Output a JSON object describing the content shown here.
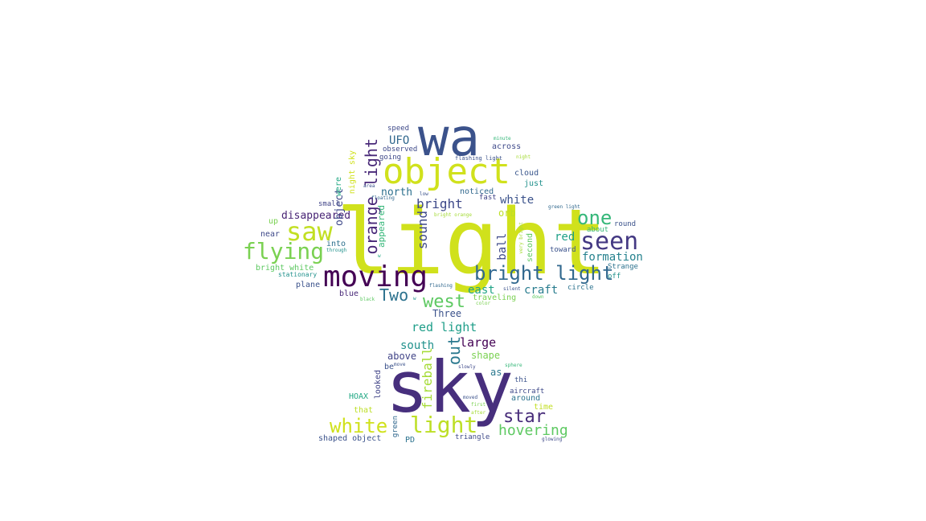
{
  "word_cloud": {
    "words": [
      {
        "text": "light",
        "color": "#d0e11c"
      },
      {
        "text": "sky",
        "color": "#472f7d"
      },
      {
        "text": "wa",
        "color": "#3b528b"
      },
      {
        "text": "object",
        "color": "#d0e11c"
      },
      {
        "text": "moving",
        "color": "#440154"
      },
      {
        "text": "saw",
        "color": "#c2df23"
      },
      {
        "text": "seen",
        "color": "#443983"
      },
      {
        "text": "flying",
        "color": "#7ad151"
      },
      {
        "text": "bright light",
        "color": "#31688e"
      },
      {
        "text": "one",
        "color": "#35b779"
      },
      {
        "text": "white",
        "color": "#d0e11c"
      },
      {
        "text": "light",
        "color": "#bddf26"
      },
      {
        "text": "star",
        "color": "#472c7a"
      },
      {
        "text": "west",
        "color": "#5ec962"
      },
      {
        "text": "Two",
        "color": "#2c728e"
      },
      {
        "text": "hovering",
        "color": "#5ec962"
      },
      {
        "text": "orange light",
        "color": "#482878"
      },
      {
        "text": "formation",
        "color": "#26828e"
      },
      {
        "text": "bright",
        "color": "#3e4989"
      },
      {
        "text": "red light",
        "color": "#1f9e89"
      },
      {
        "text": "out",
        "color": "#2a788e"
      },
      {
        "text": "sound",
        "color": "#3e4989"
      },
      {
        "text": "large",
        "color": "#440154"
      },
      {
        "text": "disappeared",
        "color": "#482475"
      },
      {
        "text": "UFO",
        "color": "#31688e"
      },
      {
        "text": "north",
        "color": "#2d708e"
      },
      {
        "text": "white",
        "color": "#3b528b"
      },
      {
        "text": "red",
        "color": "#1fa088"
      },
      {
        "text": "craft",
        "color": "#287c8e"
      },
      {
        "text": "east",
        "color": "#20a486"
      },
      {
        "text": "south",
        "color": "#21918c"
      },
      {
        "text": "fireball",
        "color": "#a5db36"
      },
      {
        "text": "orb",
        "color": "#bddf26"
      },
      {
        "text": "shape",
        "color": "#7ad151"
      },
      {
        "text": "Three",
        "color": "#3b528b"
      },
      {
        "text": "ball",
        "color": "#3e4989"
      },
      {
        "text": "appeared",
        "color": "#35b779"
      },
      {
        "text": "above",
        "color": "#414487"
      },
      {
        "text": "as",
        "color": "#2a788e"
      },
      {
        "text": "object",
        "color": "#3e4989"
      },
      {
        "text": "noticed",
        "color": "#31688e"
      },
      {
        "text": "cloud",
        "color": "#39568c"
      },
      {
        "text": "across",
        "color": "#3e4989"
      },
      {
        "text": "just",
        "color": "#21918c"
      },
      {
        "text": "night sky",
        "color": "#d0e11c"
      },
      {
        "text": "were",
        "color": "#22a884"
      },
      {
        "text": "into",
        "color": "#2d708e"
      },
      {
        "text": "bright white",
        "color": "#5ec962"
      },
      {
        "text": "near",
        "color": "#3e4989"
      },
      {
        "text": "up",
        "color": "#7ad151"
      },
      {
        "text": "second",
        "color": "#5ec962"
      },
      {
        "text": "traveling",
        "color": "#7ad151"
      },
      {
        "text": "around",
        "color": "#2c728e"
      },
      {
        "text": "time",
        "color": "#c2df23"
      },
      {
        "text": "looked",
        "color": "#414487"
      },
      {
        "text": "HOAX",
        "color": "#22a884"
      },
      {
        "text": "that",
        "color": "#bddf26"
      },
      {
        "text": "be",
        "color": "#3b528b"
      },
      {
        "text": "shaped object",
        "color": "#3b528b"
      },
      {
        "text": "PD",
        "color": "#2c728e"
      },
      {
        "text": "green",
        "color": "#31688e"
      },
      {
        "text": "triangle",
        "color": "#3e4989"
      },
      {
        "text": "plane",
        "color": "#3b528b"
      },
      {
        "text": "blue",
        "color": "#482878"
      },
      {
        "text": "circle",
        "color": "#2c728e"
      },
      {
        "text": "off",
        "color": "#21918c"
      },
      {
        "text": "Strange",
        "color": "#2c728e"
      },
      {
        "text": "about",
        "color": "#35b779"
      },
      {
        "text": "round",
        "color": "#3b528b"
      },
      {
        "text": "toward",
        "color": "#3b528b"
      },
      {
        "text": "stationary",
        "color": "#21918c"
      },
      {
        "text": "small",
        "color": "#414487"
      },
      {
        "text": "observed",
        "color": "#3e4989"
      },
      {
        "text": "speed",
        "color": "#3e4989"
      },
      {
        "text": "going",
        "color": "#3e4989"
      },
      {
        "text": "fast",
        "color": "#414487"
      },
      {
        "text": "thi",
        "color": "#3b528b"
      },
      {
        "text": "aircraft",
        "color": "#3e4989"
      },
      {
        "text": "flashing light",
        "color": "#3b528b"
      },
      {
        "text": "minute",
        "color": "#35b779"
      },
      {
        "text": "night",
        "color": "#a5db36"
      },
      {
        "text": "area",
        "color": "#3b528b"
      },
      {
        "text": "low",
        "color": "#3b528b"
      },
      {
        "text": "floating",
        "color": "#31688e"
      },
      {
        "text": "bright orange",
        "color": "#a5db36"
      },
      {
        "text": "green light",
        "color": "#31688e"
      },
      {
        "text": "very bright",
        "color": "#a5db36"
      },
      {
        "text": "through",
        "color": "#21918c"
      },
      {
        "text": "flashing",
        "color": "#31688e"
      },
      {
        "text": "silent",
        "color": "#3b528b"
      },
      {
        "text": "down",
        "color": "#5ec962"
      },
      {
        "text": "black",
        "color": "#5ec962"
      },
      {
        "text": "w",
        "color": "#21918c"
      },
      {
        "text": "color",
        "color": "#7ad151"
      },
      {
        "text": "sphere",
        "color": "#35b779"
      },
      {
        "text": "move",
        "color": "#3b528b"
      },
      {
        "text": "slowly",
        "color": "#3e4989"
      },
      {
        "text": "moved",
        "color": "#3b528b"
      },
      {
        "text": "first",
        "color": "#7ad151"
      },
      {
        "text": "after",
        "color": "#a5db36"
      },
      {
        "text": "glowing",
        "color": "#3e4989"
      },
      {
        "text": "w",
        "color": "#22a884"
      }
    ]
  }
}
